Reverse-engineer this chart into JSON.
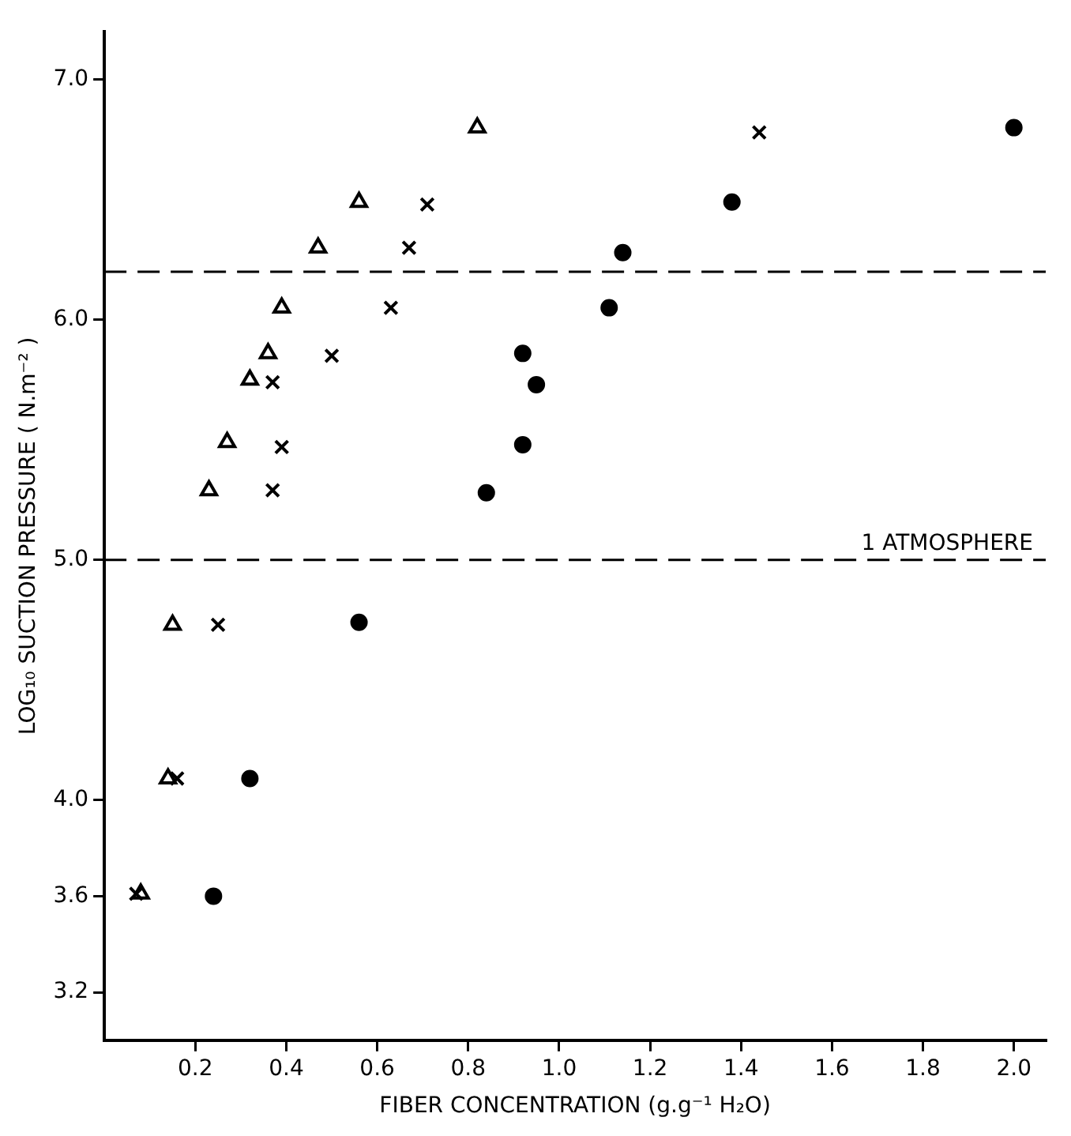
{
  "chart_data": {
    "type": "scatter",
    "xlabel": "FIBER CONCENTRATION (g.g⁻¹ H₂O)",
    "ylabel": "LOG₁₀ SUCTION PRESSURE ( N.m⁻² )",
    "xlim": [
      0,
      2.07
    ],
    "ylim": [
      3.0,
      7.2
    ],
    "xticks": [
      0.2,
      0.4,
      0.6,
      0.8,
      {
        "value": 1,
        "label": "1.0"
      },
      1.2,
      1.4,
      1.6,
      1.8,
      {
        "value": 2,
        "label": "2.0"
      }
    ],
    "yticks": [
      3.2,
      3.6,
      {
        "value": 4,
        "label": "4.0"
      },
      {
        "value": 5,
        "label": "5.0"
      },
      {
        "value": 6,
        "label": "6.0"
      },
      {
        "value": 7,
        "label": "7.0"
      }
    ],
    "grid": false,
    "legend": false,
    "ref_lines": [
      {
        "axis": "y",
        "value": 6.2,
        "label": null,
        "color": "#000000",
        "line_style": "dashed"
      },
      {
        "axis": "y",
        "value": 5.0,
        "label": "1 ATMOSPHERE",
        "color": "#000000",
        "line_style": "dashed"
      }
    ],
    "series": [
      {
        "color": "#000000",
        "marker": "triangle",
        "x": [
          0.82,
          0.56,
          0.47,
          0.39,
          0.36,
          0.32,
          0.27,
          0.23,
          0.15,
          0.14,
          0.08
        ],
        "values": [
          6.8,
          6.49,
          6.3,
          6.05,
          5.86,
          5.75,
          5.49,
          5.29,
          4.73,
          4.09,
          3.61
        ]
      },
      {
        "color": "#000000",
        "marker": "cross",
        "x": [
          1.44,
          0.71,
          0.67,
          0.63,
          0.5,
          0.37,
          0.39,
          0.37,
          0.25,
          0.16,
          0.07
        ],
        "values": [
          6.78,
          6.48,
          6.3,
          6.05,
          5.85,
          5.74,
          5.47,
          5.29,
          4.73,
          4.09,
          3.61
        ]
      },
      {
        "color": "#000000",
        "marker": "circle",
        "x": [
          0.56,
          0.32,
          0.24,
          0.84,
          0.92,
          0.92,
          0.95,
          1.11,
          1.14,
          1.38,
          2.0
        ],
        "values": [
          4.74,
          4.09,
          3.6,
          5.28,
          5.48,
          5.86,
          5.73,
          6.05,
          6.28,
          6.49,
          6.8
        ]
      }
    ]
  }
}
